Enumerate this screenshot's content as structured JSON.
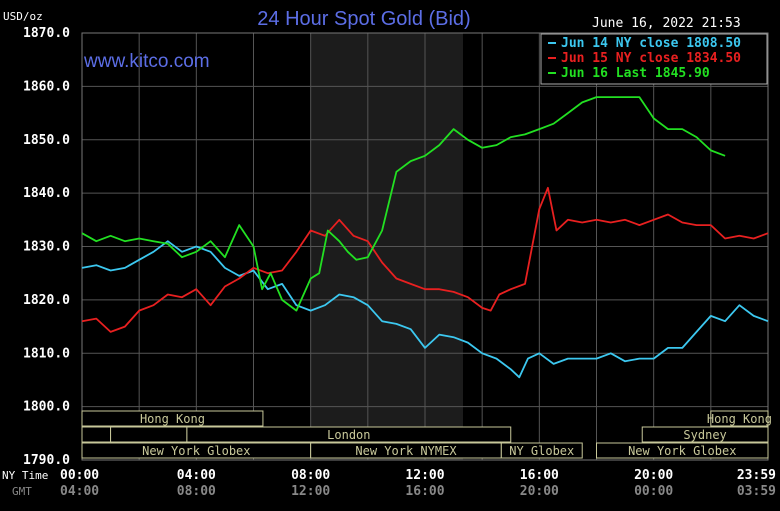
{
  "header": {
    "title": "24 Hour Spot Gold (Bid)",
    "brand": "www.kitco.com",
    "timestamp": "June 16, 2022 21:53",
    "unit": "USD/oz"
  },
  "colors": {
    "background": "#000000",
    "grid": "#555555",
    "highlight": "#1c1c1c",
    "session_box": "#c8c89a",
    "jun14": "#3cc8f0",
    "jun15": "#e82020",
    "jun16": "#22e022"
  },
  "row_labels": {
    "ny_time": "NY Time",
    "gmt": "GMT"
  },
  "sessions": [
    {
      "label": "Hong Kong",
      "start": 0,
      "end": 6.33,
      "row": 0,
      "show_label": true
    },
    {
      "label": "",
      "start": 0,
      "end": 1.0,
      "row": 1,
      "show_label": false
    },
    {
      "label": "",
      "start": 1.0,
      "end": 3.67,
      "row": 1,
      "show_label": false
    },
    {
      "label": "London",
      "start": 3.67,
      "end": 15.0,
      "row": 1,
      "show_label": true
    },
    {
      "label": "New York Globex",
      "start": 0,
      "end": 8.0,
      "row": 2,
      "show_label": true
    },
    {
      "label": "New York NYMEX",
      "start": 8.0,
      "end": 14.67,
      "row": 2,
      "show_label": true
    },
    {
      "label": "NY Globex",
      "start": 14.67,
      "end": 17.5,
      "row": 2,
      "show_label": true
    },
    {
      "label": "Hong Kong",
      "start": 22.0,
      "end": 24.0,
      "row": 0,
      "show_label": true
    },
    {
      "label": "Sydney",
      "start": 19.6,
      "end": 24.0,
      "row": 1,
      "show_label": true
    },
    {
      "label": "New York Globex",
      "start": 18.0,
      "end": 24.0,
      "row": 2,
      "show_label": true
    }
  ],
  "chart_data": {
    "type": "line",
    "title": "24 Hour Spot Gold (Bid)",
    "ylabel": "USD/oz",
    "xlim": [
      0,
      24
    ],
    "ylim": [
      1790,
      1870
    ],
    "yticks": [
      "1870.0",
      "1860.0",
      "1850.0",
      "1840.0",
      "1830.0",
      "1820.0",
      "1810.0",
      "1800.0",
      "1790.0"
    ],
    "xticks_ny": [
      "00:00",
      "04:00",
      "08:00",
      "12:00",
      "16:00",
      "20:00",
      "23:59"
    ],
    "xticks_gmt": [
      "04:00",
      "08:00",
      "12:00",
      "16:00",
      "20:00",
      "00:00",
      "03:59"
    ],
    "grid": true,
    "legend_position": "top-right",
    "highlight_range": [
      8.0,
      13.33
    ],
    "series": [
      {
        "name": "Jun 14 NY close 1808.50",
        "color": "#3cc8f0",
        "x": [
          0,
          0.5,
          1,
          1.5,
          2,
          2.5,
          3,
          3.5,
          4,
          4.5,
          5,
          5.5,
          6,
          6.5,
          7,
          7.5,
          8,
          8.5,
          9,
          9.5,
          10,
          10.5,
          11,
          11.5,
          12,
          12.5,
          13,
          13.5,
          14,
          14.5,
          15,
          15.3,
          15.6,
          16,
          16.5,
          17,
          17.5,
          18,
          18.5,
          19,
          19.5,
          20,
          20.5,
          21,
          21.5,
          22,
          22.5,
          23,
          23.5,
          24
        ],
        "values": [
          1826,
          1826.5,
          1825.5,
          1826,
          1827.5,
          1829,
          1831,
          1829,
          1830,
          1829,
          1826,
          1824.5,
          1825.5,
          1822,
          1823,
          1819,
          1818,
          1819,
          1821,
          1820.5,
          1819,
          1816,
          1815.5,
          1814.5,
          1811,
          1813.5,
          1813,
          1812,
          1810,
          1809,
          1807,
          1805.5,
          1809,
          1810,
          1808,
          1809,
          1809,
          1809,
          1810,
          1808.5,
          1809,
          1809,
          1811,
          1811,
          1814,
          1817,
          1816,
          1819,
          1817,
          1816
        ]
      },
      {
        "name": "Jun 15 NY close 1834.50",
        "color": "#e82020",
        "x": [
          0,
          0.5,
          1,
          1.5,
          2,
          2.5,
          3,
          3.5,
          4,
          4.5,
          5,
          5.5,
          6,
          6.5,
          7,
          7.5,
          8,
          8.5,
          9,
          9.5,
          10,
          10.5,
          11,
          11.5,
          12,
          12.5,
          13,
          13.5,
          14,
          14.3,
          14.6,
          15,
          15.5,
          16,
          16.3,
          16.6,
          17,
          17.5,
          18,
          18.5,
          19,
          19.5,
          20,
          20.5,
          21,
          21.5,
          22,
          22.5,
          23,
          23.5,
          24
        ],
        "values": [
          1816,
          1816.5,
          1814,
          1815,
          1818,
          1819,
          1821,
          1820.5,
          1822,
          1819,
          1822.5,
          1824,
          1826,
          1825,
          1825.5,
          1829,
          1833,
          1832,
          1835,
          1832,
          1831,
          1827,
          1824,
          1823,
          1822,
          1822,
          1821.5,
          1820.5,
          1818.5,
          1818,
          1821,
          1822,
          1823,
          1837,
          1841,
          1833,
          1835,
          1834.5,
          1835,
          1834.5,
          1835,
          1834,
          1835,
          1836,
          1834.5,
          1834,
          1834,
          1831.5,
          1832,
          1831.5,
          1832.5
        ]
      },
      {
        "name": "Jun 16 Last 1845.90",
        "color": "#22e022",
        "x": [
          0,
          0.5,
          1,
          1.5,
          2,
          2.5,
          3,
          3.5,
          4,
          4.5,
          5,
          5.5,
          6,
          6.3,
          6.6,
          7,
          7.5,
          8,
          8.3,
          8.6,
          9,
          9.3,
          9.6,
          10,
          10.5,
          11,
          11.5,
          12,
          12.5,
          13,
          13.5,
          14,
          14.5,
          15,
          15.5,
          16,
          16.5,
          17,
          17.5,
          18,
          18.5,
          19,
          19.5,
          20,
          20.5,
          21,
          21.5,
          22,
          22.5
        ],
        "values": [
          1832.5,
          1831,
          1832,
          1831,
          1831.5,
          1831,
          1830.5,
          1828,
          1829,
          1831,
          1828,
          1834,
          1830,
          1822,
          1825,
          1820,
          1818,
          1824,
          1825,
          1833,
          1831,
          1829,
          1827.5,
          1828,
          1833,
          1844,
          1846,
          1847,
          1849,
          1852,
          1850,
          1848.5,
          1849,
          1850.5,
          1851,
          1852,
          1853,
          1855,
          1857,
          1858,
          1858,
          1858,
          1858,
          1854,
          1852,
          1852,
          1850.5,
          1848,
          1847
        ]
      }
    ]
  }
}
